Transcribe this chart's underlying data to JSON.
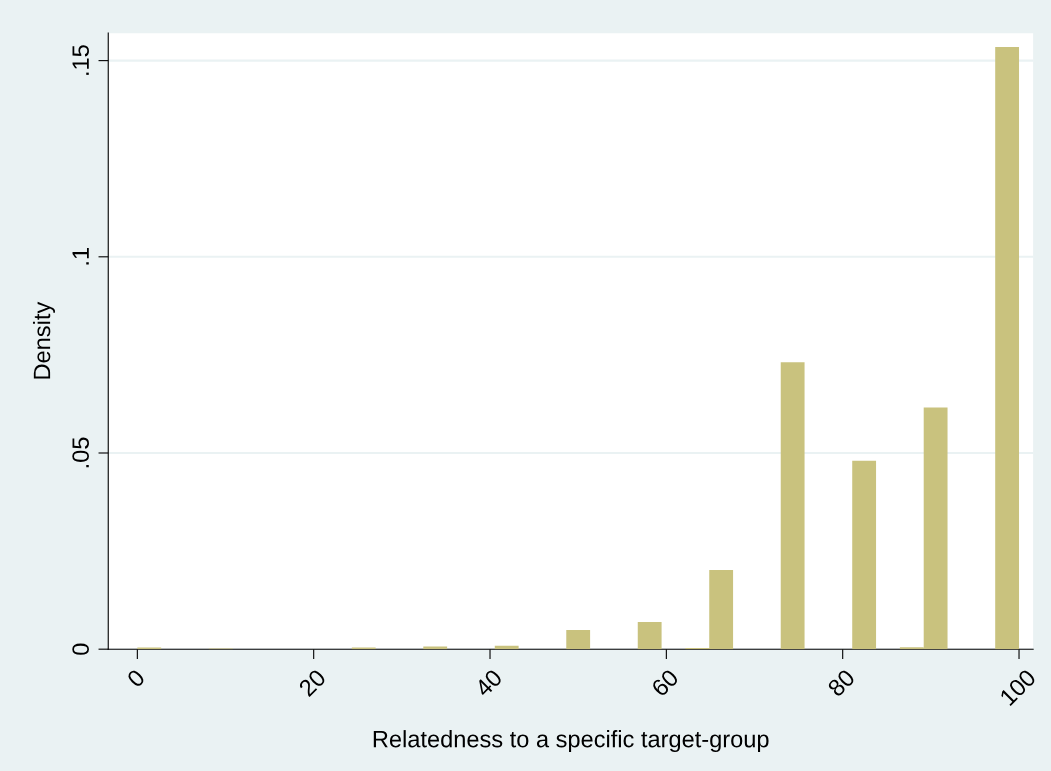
{
  "chart_data": {
    "type": "histogram",
    "xlabel": "Relatedness to a specific target-group",
    "ylabel": "Density",
    "bins": [
      0,
      2.7027,
      5.4054,
      8.1081,
      10.8108,
      13.5135,
      16.2162,
      18.9189,
      21.6216,
      24.3243,
      27.027,
      29.7297,
      32.4324,
      35.1351,
      37.8378,
      40.5405,
      43.2432,
      45.9459,
      48.6486,
      51.3514,
      54.0541,
      56.7568,
      59.4595,
      62.1622,
      64.8649,
      67.5676,
      70.2703,
      72.973,
      75.6757,
      78.3784,
      81.0811,
      83.7838,
      86.4865,
      89.1892,
      91.8919,
      94.5946,
      97.2973,
      100
    ],
    "values": [
      0.0004,
      0,
      0,
      0.0002,
      0,
      0,
      0,
      0,
      0,
      0.0004,
      0,
      0,
      0.0007,
      0,
      0,
      0.0009,
      0,
      0,
      0.0049,
      0,
      0,
      0.0069,
      0,
      0.0003,
      0.0202,
      0,
      0,
      0.0731,
      0,
      0,
      0.048,
      0,
      0.0005,
      0.0616,
      0,
      0,
      0.1535
    ],
    "color": "#c9c27e",
    "xlim": [
      -3.3,
      101.6
    ],
    "ylim": [
      0,
      0.157
    ],
    "xticks": [
      0,
      20,
      40,
      60,
      80,
      100
    ],
    "yticks": [
      0,
      {
        "value": 0.05,
        "label": ".05"
      },
      {
        "value": 0.1,
        "label": ".1"
      },
      {
        "value": 0.15,
        "label": ".15"
      }
    ],
    "grid": "y"
  }
}
